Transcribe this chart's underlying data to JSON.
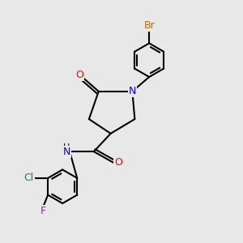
{
  "bg_color": "#e8e8e8",
  "bond_color": "#000000",
  "bond_width": 1.5,
  "atom_colors": {
    "O": "#ff0000",
    "N": "#0000ff",
    "Br": "#cc6600",
    "Cl": "#228822",
    "F": "#cc00cc",
    "H": "#000000"
  },
  "font_size": 9
}
